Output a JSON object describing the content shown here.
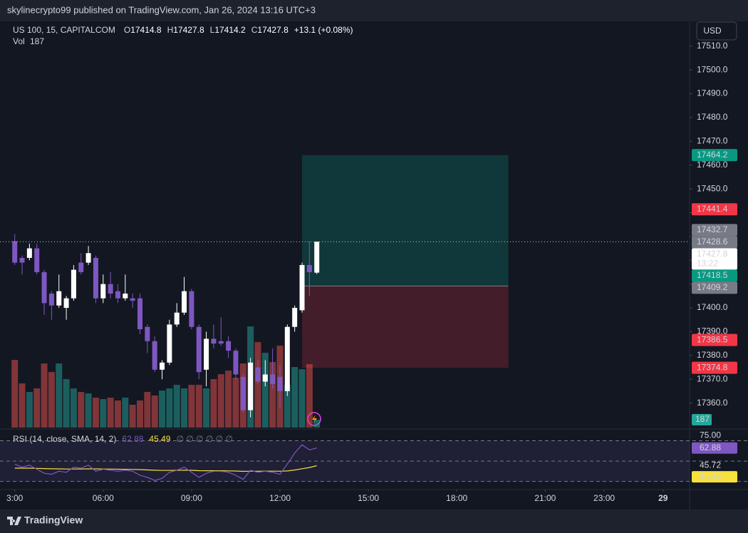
{
  "header": {
    "text": "skylinecrypto99 published on TradingView.com, Jan 26, 2024 13:16 UTC+3"
  },
  "footer": {
    "brand": "TradingView"
  },
  "currency_button": "USD",
  "chart_data": {
    "type": "candlestick",
    "title": "US 100, 15, CAPITALCOM",
    "ohlc_letters": [
      "O",
      "H",
      "L",
      "C"
    ],
    "change_text": "+13.1 (+0.08%)",
    "countdown": "13:22",
    "up_color": "#ffffff",
    "down_color": "#7e57c2",
    "x": [
      3,
      3.25,
      3.5,
      3.75,
      4,
      4.25,
      4.5,
      4.75,
      5,
      5.25,
      5.5,
      5.75,
      6,
      6.25,
      6.5,
      6.75,
      7,
      7.25,
      7.5,
      7.75,
      8,
      8.25,
      8.5,
      8.75,
      9,
      9.25,
      9.5,
      9.75,
      10,
      10.25,
      10.5,
      10.75,
      11,
      11.25,
      11.5,
      11.75,
      12,
      12.25,
      12.5,
      12.75,
      13,
      13.25
    ],
    "open": [
      17428,
      17421,
      17421,
      17425,
      17415,
      17406,
      17401,
      17400,
      17404,
      17419,
      17419,
      17421,
      17404,
      17410,
      17407,
      17404,
      17404,
      17404,
      17392,
      17386,
      17374,
      17377,
      17393,
      17398,
      17407,
      17392,
      17374,
      17387,
      17386,
      17386,
      17382,
      17371,
      17357,
      17375,
      17369,
      17372,
      17371,
      17365,
      17392,
      17399,
      17418,
      17414.8
    ],
    "high": [
      17431,
      17422,
      17427,
      17427,
      17416,
      17407,
      17414,
      17405,
      17418,
      17423,
      17426,
      17422,
      17414,
      17415,
      17410,
      17414,
      17406,
      17406,
      17393,
      17388,
      17378,
      17395,
      17402,
      17413,
      17408,
      17393,
      17390,
      17393,
      17396,
      17388,
      17383,
      17372,
      17379,
      17378,
      17378,
      17383,
      17376,
      17393,
      17401,
      17419,
      17428,
      17427.8
    ],
    "low": [
      17418,
      17414,
      17420,
      17414,
      17397,
      17395,
      17400,
      17395,
      17403,
      17414,
      17418,
      17402,
      17402,
      17404,
      17402,
      17403,
      17400,
      17389,
      17381,
      17373,
      17370,
      17376,
      17392,
      17397,
      17391,
      17370,
      17367,
      17383,
      17384,
      17379,
      17370,
      17356,
      17354,
      17368,
      17367,
      17366,
      17358,
      17363,
      17390,
      17398,
      17405,
      17414.2
    ],
    "close": [
      17419,
      17419,
      17425,
      17415,
      17402,
      17401,
      17407,
      17404,
      17416,
      17415,
      17423,
      17404,
      17410,
      17406,
      17404,
      17406,
      17403,
      17391,
      17386,
      17374,
      17377,
      17393,
      17398,
      17407,
      17392,
      17373,
      17387,
      17385,
      17385,
      17382,
      17372,
      17357,
      17377,
      17369,
      17372,
      17368,
      17365,
      17392,
      17400,
      17418,
      17415,
      17427.8
    ],
    "xlim": [
      2.5,
      25.9
    ],
    "xticks": [
      {
        "value": 3,
        "label": "3:00"
      },
      {
        "value": 6,
        "label": "06:00"
      },
      {
        "value": 9,
        "label": "09:00"
      },
      {
        "value": 12,
        "label": "12:00"
      },
      {
        "value": 15,
        "label": "15:00"
      },
      {
        "value": 18,
        "label": "18:00"
      },
      {
        "value": 21,
        "label": "21:00"
      },
      {
        "value": 23,
        "label": "23:00"
      },
      {
        "value": 25,
        "label": "29"
      }
    ],
    "ylim": [
      17349.7,
      17520.4
    ],
    "yticks": [
      {
        "value": 17360,
        "label": "17360.0"
      },
      {
        "value": 17370,
        "label": "17370.0"
      },
      {
        "value": 17380,
        "label": "17380.0"
      },
      {
        "value": 17390,
        "label": "17390.0"
      },
      {
        "value": 17400,
        "label": "17400.0"
      },
      {
        "value": 17410,
        "label": "17410.0"
      },
      {
        "value": 17420,
        "label": "17420.0"
      },
      {
        "value": 17430,
        "label": "17430.0"
      },
      {
        "value": 17440,
        "label": "17440.0"
      },
      {
        "value": 17450,
        "label": "17450.0"
      },
      {
        "value": 17460,
        "label": "17460.0"
      },
      {
        "value": 17470,
        "label": "17470.0"
      },
      {
        "value": 17480,
        "label": "17480.0"
      },
      {
        "value": 17490,
        "label": "17490.0"
      },
      {
        "value": 17500,
        "label": "17500.0"
      },
      {
        "value": 17510,
        "label": "17510.0"
      }
    ],
    "grid": false,
    "position": {
      "start": 12.75,
      "end": 19.75,
      "entry": 17409.2,
      "target": 17464.2,
      "stop": 17374.8,
      "profit_color": "#089981",
      "loss_color": "#f23645",
      "entry_color": "#787b86"
    },
    "price_labels": [
      {
        "value": 17441.4,
        "color": "#f23645"
      },
      {
        "value": 17432.7,
        "color": "#787b86"
      },
      {
        "value": 17428.6,
        "color": "#787b86"
      },
      {
        "value": 17418.5,
        "color": "#089981"
      },
      {
        "value": 17386.5,
        "color": "#f23645"
      }
    ],
    "volume": {
      "name": "Vol",
      "up_color": "#26a69a",
      "down_color": "#ef5350",
      "ylim": [
        0,
        9700
      ],
      "values": [
        1615,
        1054,
        850,
        935,
        1530,
        1326,
        1530,
        1156,
        935,
        850,
        816,
        714,
        680,
        714,
        646,
        714,
        544,
        646,
        850,
        765,
        884,
        935,
        1020,
        935,
        1020,
        1020,
        935,
        1156,
        1275,
        1360,
        1190,
        1530,
        2414,
        2040,
        1785,
        1564,
        1955,
        1020,
        1445,
        1394,
        1513,
        187
      ]
    },
    "rsi": {
      "name": "RSI (14, close, SMA, 14, 2)",
      "empty_values": "∅ ∅ ∅ ∅ ∅ ∅",
      "color": "#7e57c2",
      "sma_color": "#f7e13c",
      "ylim": [
        22.7,
        80.9
      ],
      "bands": [
        70,
        50,
        30
      ],
      "yticks": [
        {
          "value": 75,
          "label": "75.00"
        },
        {
          "value": 45.72,
          "label": "45.72"
        }
      ],
      "values": [
        47,
        44,
        46,
        42,
        38,
        37,
        40,
        39,
        44,
        43,
        46,
        40,
        42,
        41,
        40,
        41,
        40,
        36,
        34,
        31,
        33,
        39,
        41,
        44,
        39,
        34,
        38,
        40,
        40,
        39,
        36,
        32,
        41,
        39,
        40,
        39,
        37,
        47,
        58,
        66,
        61,
        62.88
      ],
      "sma": [
        43,
        43,
        43,
        42.8,
        42.6,
        42.4,
        42.3,
        42.2,
        42.2,
        42.2,
        42.3,
        42.3,
        42.2,
        42.1,
        42,
        41.9,
        41.8,
        41.6,
        41.3,
        41,
        40.8,
        40.8,
        40.9,
        41,
        40.9,
        40.6,
        40.5,
        40.5,
        40.5,
        40.4,
        40.2,
        39.9,
        40,
        40,
        40.1,
        40.1,
        40,
        40.3,
        41.2,
        42.5,
        43.7,
        45.49
      ]
    }
  }
}
